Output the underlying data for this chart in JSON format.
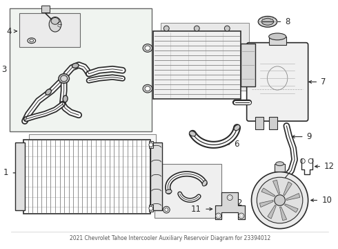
{
  "title": "2021 Chevrolet Tahoe Intercooler Auxiliary Reservoir Diagram for 23394012",
  "bg_color": "#ffffff",
  "line_color": "#2a2a2a",
  "gray_fill": "#e8e8e8",
  "light_fill": "#f2f2f2",
  "font_size": 8.5
}
